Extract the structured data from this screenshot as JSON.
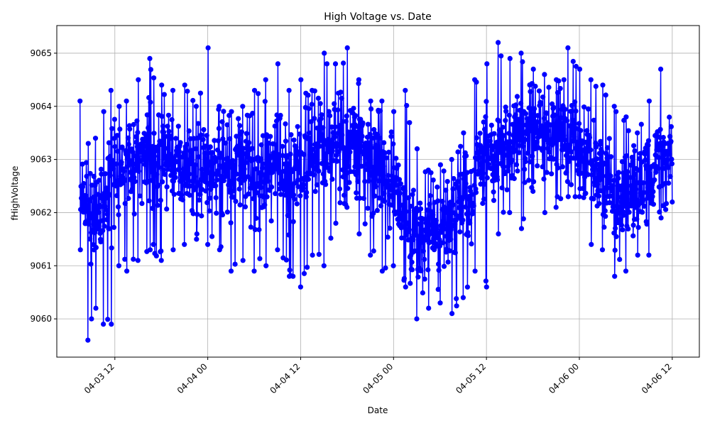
{
  "chart_data": {
    "type": "line",
    "title": "High Voltage vs. Date",
    "xlabel": "Date",
    "ylabel": "fHighVoltage",
    "x_start": "2025-04-03 07:30",
    "x_end": "2025-04-06 12:00",
    "xlim": [
      "2025-04-03 04:30",
      "2025-04-06 15:30"
    ],
    "ylim": [
      9059.28,
      9065.52
    ],
    "x_ticks": [
      {
        "value": "2025-04-03 12:00",
        "label": "04-03 12"
      },
      {
        "value": "2025-04-04 00:00",
        "label": "04-04 00"
      },
      {
        "value": "2025-04-04 12:00",
        "label": "04-04 12"
      },
      {
        "value": "2025-04-05 00:00",
        "label": "04-05 00"
      },
      {
        "value": "2025-04-05 12:00",
        "label": "04-05 12"
      },
      {
        "value": "2025-04-06 00:00",
        "label": "04-06 00"
      },
      {
        "value": "2025-04-06 12:00",
        "label": "04-06 12"
      }
    ],
    "y_ticks": [
      9060,
      9061,
      9062,
      9063,
      9064,
      9065
    ],
    "grid": true,
    "marker": "circle",
    "series_color": "#0000ff",
    "series": [
      {
        "x": [
          "2025-04-03 07:30",
          "2025-04-03 08:30",
          "2025-04-03 09:30",
          "2025-04-03 10:30",
          "2025-04-03 11:30",
          "2025-04-03 12:30",
          "2025-04-03 13:30",
          "2025-04-03 15:00",
          "2025-04-03 16:30",
          "2025-04-03 18:00",
          "2025-04-03 19:30",
          "2025-04-03 21:00",
          "2025-04-03 22:30",
          "2025-04-04 00:00",
          "2025-04-04 01:30",
          "2025-04-04 03:00",
          "2025-04-04 04:30",
          "2025-04-04 06:00",
          "2025-04-04 07:30",
          "2025-04-04 09:00",
          "2025-04-04 10:30",
          "2025-04-04 12:00",
          "2025-04-04 13:30",
          "2025-04-04 15:00",
          "2025-04-04 16:30",
          "2025-04-04 18:00",
          "2025-04-04 19:30",
          "2025-04-04 21:00",
          "2025-04-04 22:30",
          "2025-04-05 00:00",
          "2025-04-05 01:30",
          "2025-04-05 03:00",
          "2025-04-05 04:30",
          "2025-04-05 06:00",
          "2025-04-05 07:30",
          "2025-04-05 09:00",
          "2025-04-05 10:30",
          "2025-04-05 12:00",
          "2025-04-05 13:30",
          "2025-04-05 15:00",
          "2025-04-05 16:30",
          "2025-04-05 18:00",
          "2025-04-05 19:30",
          "2025-04-05 21:00",
          "2025-04-05 22:30",
          "2025-04-06 00:00",
          "2025-04-06 01:30",
          "2025-04-06 03:00",
          "2025-04-06 04:30",
          "2025-04-06 06:00",
          "2025-04-06 07:30",
          "2025-04-06 09:00",
          "2025-04-06 10:30",
          "2025-04-06 12:00"
        ],
        "y": [
          9062.5,
          9062.1,
          9062.0,
          9062.3,
          9062.6,
          9062.8,
          9062.9,
          9063.0,
          9063.1,
          9063.0,
          9062.9,
          9062.8,
          9062.8,
          9062.8,
          9062.8,
          9062.7,
          9062.7,
          9062.8,
          9062.8,
          9062.8,
          9062.9,
          9062.9,
          9063.0,
          9063.3,
          9063.4,
          9063.3,
          9063.2,
          9063.0,
          9062.8,
          9062.5,
          9061.8,
          9061.5,
          9061.6,
          9061.7,
          9061.9,
          9062.2,
          9062.6,
          9062.9,
          9063.2,
          9063.3,
          9063.4,
          9063.5,
          9063.5,
          9063.4,
          9063.4,
          9063.3,
          9063.0,
          9062.6,
          9062.3,
          9062.2,
          9062.4,
          9062.7,
          9063.0,
          9063.2
        ],
        "upper_envelope": [
          9064.1,
          9063.3,
          9063.4,
          9063.9,
          9064.3,
          9064.0,
          9064.1,
          9064.5,
          9064.9,
          9064.4,
          9064.3,
          9064.4,
          9064.0,
          9065.1,
          9064.0,
          9063.9,
          9064.0,
          9064.3,
          9064.5,
          9064.8,
          9064.3,
          9064.5,
          9064.3,
          9065.0,
          9064.8,
          9065.1,
          9064.5,
          9064.1,
          9064.1,
          9063.9,
          9064.3,
          9063.2,
          9062.8,
          9062.9,
          9063.0,
          9063.5,
          9064.5,
          9064.8,
          9065.2,
          9064.9,
          9065.0,
          9064.7,
          9064.6,
          9064.5,
          9065.1,
          9064.7,
          9064.5,
          9064.4,
          9064.0,
          9063.8,
          9063.5,
          9064.1,
          9064.7,
          9064.3
        ],
        "lower_envelope": [
          9061.3,
          9059.6,
          9060.2,
          9059.9,
          9059.9,
          9061.0,
          9060.9,
          9061.1,
          9061.3,
          9061.1,
          9061.3,
          9061.4,
          9061.5,
          9061.4,
          9061.3,
          9060.9,
          9061.1,
          9060.9,
          9061.0,
          9061.3,
          9060.8,
          9060.6,
          9061.2,
          9061.0,
          9061.8,
          9062.1,
          9061.6,
          9061.2,
          9060.9,
          9061.0,
          9060.6,
          9060.0,
          9060.2,
          9060.3,
          9060.1,
          9060.4,
          9060.9,
          9060.6,
          9061.6,
          9062.0,
          9061.7,
          9062.4,
          9062.0,
          9062.1,
          9062.3,
          9062.3,
          9061.4,
          9061.3,
          9060.8,
          9060.9,
          9061.2,
          9061.2,
          9061.9,
          9062.2
        ]
      }
    ]
  }
}
